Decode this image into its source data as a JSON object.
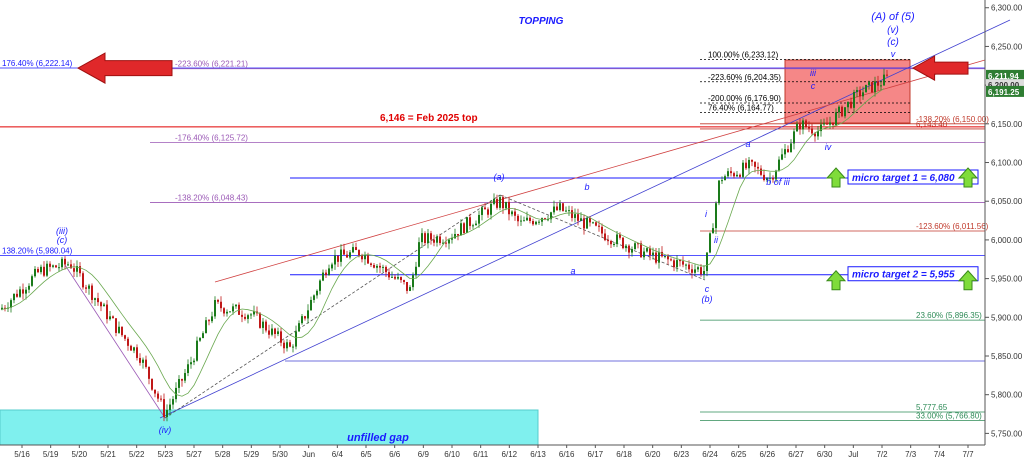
{
  "chart_data": {
    "type": "candlestick",
    "title": "TOPPING",
    "x_ticks": [
      "5/16",
      "5/19",
      "5/20",
      "5/21",
      "5/22",
      "5/23",
      "5/27",
      "5/28",
      "5/29",
      "5/30",
      "Jun",
      "6/4",
      "6/5",
      "6/6",
      "6/9",
      "6/10",
      "6/11",
      "6/12",
      "6/13",
      "6/16",
      "6/17",
      "6/18",
      "6/20",
      "6/23",
      "6/24",
      "6/25",
      "6/26",
      "6/27",
      "6/30",
      "Jul",
      "7/2",
      "7/3",
      "7/4",
      "7/7"
    ],
    "y_ticks": [
      "5,750.00",
      "5,800.00",
      "5,850.00",
      "5,900.00",
      "5,950.00",
      "6,000.00",
      "6,050.00",
      "6,100.00",
      "6,150.00",
      "6,200.00",
      "6,250.00",
      "6,300.00"
    ],
    "ylim": [
      5735,
      6310
    ],
    "price_labels": [
      {
        "text": "6,211.94",
        "value": 6211.94,
        "color": "#2e7d32"
      },
      {
        "text": "6,200.00",
        "value": 6200,
        "color": "#ffffff"
      },
      {
        "text": "6,191.25",
        "value": 6191.25,
        "color": "#2e7d32"
      }
    ],
    "fib_levels": [
      {
        "text": "176.40% (6,222.14)",
        "value": 6222.14,
        "color": "#1a1aff",
        "label_x": "left"
      },
      {
        "text": "-223.60% (6,221.21)",
        "value": 6221.21,
        "color": "#9b59b6",
        "label_x": "mid"
      },
      {
        "text": "100.00% (6,233.12)",
        "value": 6233.12,
        "color": "#000000",
        "label_x": "box"
      },
      {
        "text": "-223.60% (6,204.35)",
        "value": 6204.35,
        "color": "#000000",
        "label_x": "box"
      },
      {
        "text": "-200.00% (6,176.90)",
        "value": 6176.9,
        "color": "#000000",
        "label_x": "box"
      },
      {
        "text": "76.40% (6,164.77)",
        "value": 6164.77,
        "color": "#000000",
        "label_x": "box"
      },
      {
        "text": "-138.20% (6,150.00)",
        "value": 6150,
        "color": "#c0392b",
        "label_x": "right"
      },
      {
        "text": "6,143.40",
        "value": 6143.4,
        "color": "#c0392b",
        "label_x": "right"
      },
      {
        "text": "-176.40% (6,125.72)",
        "value": 6125.72,
        "color": "#9b59b6",
        "label_x": "mid"
      },
      {
        "text": "-138.20% (6,048.43)",
        "value": 6048.43,
        "color": "#9b59b6",
        "label_x": "mid"
      },
      {
        "text": "-123.60% (6,011.56)",
        "value": 6011.56,
        "color": "#c0392b",
        "label_x": "right"
      },
      {
        "text": "138.20% (5,980.04)",
        "value": 5980.04,
        "color": "#1a1aff",
        "label_x": "left"
      },
      {
        "text": "23.60% (5,896.35)",
        "value": 5896.35,
        "color": "#2e8b57",
        "label_x": "right"
      },
      {
        "text": "5,777.65",
        "value": 5777.65,
        "color": "#2e8b57",
        "label_x": "right"
      },
      {
        "text": "33.00% (5,766.80)",
        "value": 5766.8,
        "color": "#2e8b57",
        "label_x": "right"
      }
    ],
    "annotations": [
      {
        "text": "6,146 = Feb 2025 top",
        "value": 6146,
        "color": "#e00000"
      },
      {
        "text": "micro target 1 = 6,080",
        "value": 6080,
        "color": "#1a1aff"
      },
      {
        "text": "micro target 2 = 5,955",
        "value": 5955,
        "color": "#1a1aff"
      },
      {
        "text": "unfilled gap",
        "color": "#1a1aff"
      }
    ],
    "wave_labels": [
      "(A) of (5)",
      "(v)",
      "(c)",
      "v",
      "iii",
      "c",
      "iv",
      "a",
      "b of iii",
      "i",
      "ii",
      "c",
      "(b)",
      "(a)",
      "b",
      "a",
      "(iii)",
      "(c)",
      "(iv)"
    ]
  }
}
